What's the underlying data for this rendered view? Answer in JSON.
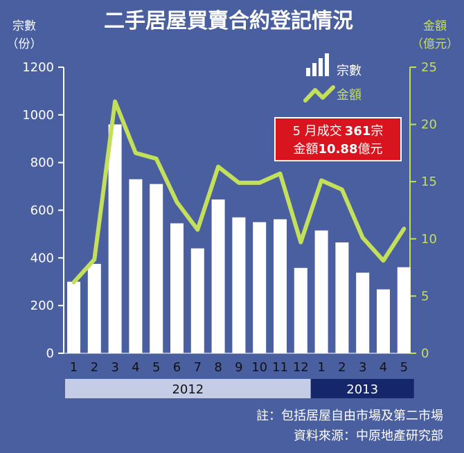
{
  "chart_data": {
    "type": "bar+line",
    "title": "二手居屋買賣合約登記情況",
    "categories": [
      "1",
      "2",
      "3",
      "4",
      "5",
      "6",
      "7",
      "8",
      "9",
      "10",
      "11",
      "12",
      "1",
      "2",
      "3",
      "4",
      "5"
    ],
    "years": [
      {
        "label": "2012",
        "months": 12,
        "color": "#c5cde6",
        "text_color": "#111111"
      },
      {
        "label": "2013",
        "months": 5,
        "color": "#15266b",
        "text_color": "#ffffff"
      }
    ],
    "left_axis": {
      "label_line1": "宗數",
      "label_line2": "（份）",
      "min": 0,
      "max": 1200,
      "ticks": [
        0,
        200,
        400,
        600,
        800,
        1000,
        1200
      ]
    },
    "right_axis": {
      "label_line1": "金額",
      "label_line2": "（億元）",
      "min": 0,
      "max": 25,
      "ticks": [
        0,
        5,
        10,
        15,
        20,
        25
      ]
    },
    "series": [
      {
        "name": "宗數",
        "type": "bar",
        "axis": "left",
        "color": "#ffffff",
        "values": [
          300,
          375,
          960,
          730,
          710,
          545,
          440,
          645,
          570,
          550,
          562,
          358,
          515,
          465,
          338,
          268,
          361
        ]
      },
      {
        "name": "金額",
        "type": "line",
        "axis": "right",
        "color": "#c4df5a",
        "values": [
          6.2,
          8.2,
          22.0,
          17.5,
          17.0,
          13.2,
          10.8,
          16.3,
          14.9,
          14.9,
          15.7,
          9.7,
          15.1,
          14.3,
          10.1,
          8.1,
          10.88
        ]
      }
    ],
    "annotation": {
      "line1_prefix": "5 月成交",
      "line1_value": "361",
      "line1_suffix": "宗",
      "line2_prefix": "金額",
      "line2_value": "10.88",
      "line2_suffix": "億元"
    }
  },
  "colors": {
    "background": "#4a5fa0",
    "bar": "#ffffff",
    "line": "#c4df5a",
    "left_axis": "#ffffff",
    "right_axis": "#c4df5a",
    "annotation_bg": "#d8141e"
  },
  "notes": {
    "note": "註：包括居屋自由市場及第二市場",
    "source": "資料來源：中原地產研究部"
  }
}
